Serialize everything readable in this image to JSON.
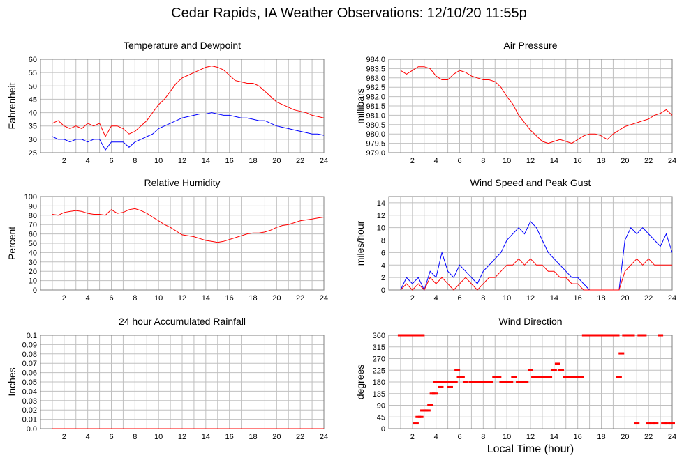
{
  "page": {
    "title": "Cedar Rapids, IA Weather Observations: 12/10/20 11:55p",
    "x_axis_title": "Local Time (hour)"
  },
  "colors": {
    "series_red": "#ff0000",
    "series_blue": "#0000ff",
    "grid": "#c0c0c0",
    "frame": "#808080"
  },
  "chart_data": [
    {
      "id": "temp",
      "type": "line",
      "title": "Temperature and Dewpoint",
      "ylabel": "Fahrenheit",
      "xlim": [
        0,
        24
      ],
      "ylim": [
        25,
        60
      ],
      "xticks": [
        2,
        4,
        6,
        8,
        10,
        12,
        14,
        16,
        18,
        20,
        22,
        24
      ],
      "yticks": [
        25,
        30,
        35,
        40,
        45,
        50,
        55,
        60
      ],
      "ytick_labels": [
        "25",
        "30",
        "35",
        "40",
        "45",
        "50",
        "55",
        "60"
      ],
      "grid": true,
      "series": [
        {
          "color": "#ff0000",
          "x": [
            1,
            1.5,
            2,
            2.5,
            3,
            3.5,
            4,
            4.5,
            5,
            5.5,
            6,
            6.5,
            7,
            7.5,
            8,
            8.5,
            9,
            9.5,
            10,
            10.5,
            11,
            11.5,
            12,
            12.5,
            13,
            13.5,
            14,
            14.5,
            15,
            15.5,
            16,
            16.5,
            17,
            17.5,
            18,
            18.5,
            19,
            19.5,
            20,
            20.5,
            21,
            21.5,
            22,
            22.5,
            23,
            23.5,
            24
          ],
          "y": [
            36,
            37,
            35,
            34,
            35,
            34,
            36,
            35,
            36,
            31,
            35,
            35,
            34,
            32,
            33,
            35,
            37,
            40,
            43,
            45,
            48,
            51,
            53,
            54,
            55,
            56,
            57,
            57.5,
            57,
            56,
            54,
            52,
            51.5,
            51,
            51,
            50,
            48,
            46,
            44,
            43,
            42,
            41,
            40.5,
            40,
            39,
            38.5,
            38
          ]
        },
        {
          "color": "#0000ff",
          "x": [
            1,
            1.5,
            2,
            2.5,
            3,
            3.5,
            4,
            4.5,
            5,
            5.5,
            6,
            6.5,
            7,
            7.5,
            8,
            8.5,
            9,
            9.5,
            10,
            10.5,
            11,
            11.5,
            12,
            12.5,
            13,
            13.5,
            14,
            14.5,
            15,
            15.5,
            16,
            16.5,
            17,
            17.5,
            18,
            18.5,
            19,
            19.5,
            20,
            20.5,
            21,
            21.5,
            22,
            22.5,
            23,
            23.5,
            24
          ],
          "y": [
            31,
            30,
            30,
            29,
            30,
            30,
            29,
            30,
            30,
            26,
            29,
            29,
            29,
            27,
            29,
            30,
            31,
            32,
            34,
            35,
            36,
            37,
            38,
            38.5,
            39,
            39.5,
            39.5,
            40,
            39.5,
            39,
            39,
            38.5,
            38,
            38,
            37.5,
            37,
            37,
            36,
            35,
            34.5,
            34,
            33.5,
            33,
            32.5,
            32,
            32,
            31.5
          ]
        }
      ]
    },
    {
      "id": "pressure",
      "type": "line",
      "title": "Air Pressure",
      "ylabel": "millibars",
      "xlim": [
        0,
        24
      ],
      "ylim": [
        979.0,
        984.0
      ],
      "xticks": [
        2,
        4,
        6,
        8,
        10,
        12,
        14,
        16,
        18,
        20,
        22,
        24
      ],
      "yticks": [
        979.0,
        979.5,
        980.0,
        980.5,
        981.0,
        981.5,
        982.0,
        982.5,
        983.0,
        983.5,
        984.0
      ],
      "ytick_labels": [
        "979.0",
        "979.5",
        "980.0",
        "980.5",
        "981.0",
        "981.5",
        "982.0",
        "982.5",
        "983.0",
        "983.5",
        "984.0"
      ],
      "grid": true,
      "series": [
        {
          "color": "#ff0000",
          "x": [
            1,
            1.5,
            2,
            2.5,
            3,
            3.5,
            4,
            4.5,
            5,
            5.5,
            6,
            6.5,
            7,
            7.5,
            8,
            8.5,
            9,
            9.5,
            10,
            10.5,
            11,
            11.5,
            12,
            12.5,
            13,
            13.5,
            14,
            14.5,
            15,
            15.5,
            16,
            16.5,
            17,
            17.5,
            18,
            18.5,
            19,
            19.5,
            20,
            20.5,
            21,
            21.5,
            22,
            22.5,
            23,
            23.5,
            24
          ],
          "y": [
            983.4,
            983.2,
            983.4,
            983.6,
            983.6,
            983.5,
            983.1,
            982.9,
            982.9,
            983.2,
            983.4,
            983.3,
            983.1,
            983.0,
            982.9,
            982.9,
            982.8,
            982.5,
            982.0,
            981.6,
            981.0,
            980.6,
            980.2,
            979.9,
            979.6,
            979.5,
            979.6,
            979.7,
            979.6,
            979.5,
            979.7,
            979.9,
            980.0,
            980.0,
            979.9,
            979.7,
            980.0,
            980.2,
            980.4,
            980.5,
            980.6,
            980.7,
            980.8,
            981.0,
            981.1,
            981.3,
            981.0
          ]
        }
      ]
    },
    {
      "id": "humidity",
      "type": "line",
      "title": "Relative Humidity",
      "ylabel": "Percent",
      "xlim": [
        0,
        24
      ],
      "ylim": [
        0,
        100
      ],
      "xticks": [
        2,
        4,
        6,
        8,
        10,
        12,
        14,
        16,
        18,
        20,
        22,
        24
      ],
      "yticks": [
        0,
        10,
        20,
        30,
        40,
        50,
        60,
        70,
        80,
        90,
        100
      ],
      "ytick_labels": [
        "0",
        "10",
        "20",
        "30",
        "40",
        "50",
        "60",
        "70",
        "80",
        "90",
        "100"
      ],
      "grid": true,
      "series": [
        {
          "color": "#ff0000",
          "x": [
            1,
            1.5,
            2,
            2.5,
            3,
            3.5,
            4,
            4.5,
            5,
            5.5,
            6,
            6.5,
            7,
            7.5,
            8,
            8.5,
            9,
            9.5,
            10,
            10.5,
            11,
            11.5,
            12,
            12.5,
            13,
            13.5,
            14,
            14.5,
            15,
            15.5,
            16,
            16.5,
            17,
            17.5,
            18,
            18.5,
            19,
            19.5,
            20,
            20.5,
            21,
            21.5,
            22,
            22.5,
            23,
            23.5,
            24
          ],
          "y": [
            81,
            80,
            83,
            84,
            85,
            84,
            82,
            81,
            81,
            80,
            86,
            82,
            83,
            86,
            87,
            85,
            82,
            78,
            74,
            70,
            67,
            63,
            59,
            58,
            57,
            55,
            53,
            52,
            51,
            52,
            54,
            56,
            58,
            60,
            61,
            61,
            62,
            64,
            67,
            69,
            70,
            72,
            74,
            75,
            76,
            77,
            78
          ]
        }
      ]
    },
    {
      "id": "wind",
      "type": "line",
      "title": "Wind Speed and Peak Gust",
      "ylabel": "miles/hour",
      "xlim": [
        0,
        24
      ],
      "ylim": [
        0,
        15
      ],
      "xticks": [
        2,
        4,
        6,
        8,
        10,
        12,
        14,
        16,
        18,
        20,
        22,
        24
      ],
      "yticks": [
        0,
        2,
        4,
        6,
        8,
        10,
        12,
        14
      ],
      "ytick_labels": [
        "0",
        "2",
        "4",
        "6",
        "8",
        "10",
        "12",
        "14"
      ],
      "grid": true,
      "series": [
        {
          "color": "#0000ff",
          "x": [
            1,
            1.5,
            2,
            2.5,
            3,
            3.5,
            4,
            4.5,
            5,
            5.5,
            6,
            6.5,
            7,
            7.5,
            8,
            8.5,
            9,
            9.5,
            10,
            10.5,
            11,
            11.5,
            12,
            12.5,
            13,
            13.5,
            14,
            14.5,
            15,
            15.5,
            16,
            16.5,
            17,
            17.5,
            18,
            18.5,
            19,
            19.5,
            20,
            20.5,
            21,
            21.5,
            22,
            22.5,
            23,
            23.5,
            24
          ],
          "y": [
            0,
            2,
            1,
            2,
            0,
            3,
            2,
            6,
            3,
            2,
            4,
            3,
            2,
            1,
            3,
            4,
            5,
            6,
            8,
            9,
            10,
            9,
            11,
            10,
            8,
            6,
            5,
            4,
            3,
            2,
            2,
            1,
            0,
            0,
            0,
            0,
            0,
            0,
            8,
            10,
            9,
            10,
            9,
            8,
            7,
            9,
            6
          ]
        },
        {
          "color": "#ff0000",
          "x": [
            1,
            1.5,
            2,
            2.5,
            3,
            3.5,
            4,
            4.5,
            5,
            5.5,
            6,
            6.5,
            7,
            7.5,
            8,
            8.5,
            9,
            9.5,
            10,
            10.5,
            11,
            11.5,
            12,
            12.5,
            13,
            13.5,
            14,
            14.5,
            15,
            15.5,
            16,
            16.5,
            17,
            17.5,
            18,
            18.5,
            19,
            19.5,
            20,
            20.5,
            21,
            21.5,
            22,
            22.5,
            23,
            23.5,
            24
          ],
          "y": [
            0,
            1,
            0,
            1,
            0,
            2,
            1,
            2,
            1,
            0,
            1,
            2,
            1,
            0,
            1,
            2,
            2,
            3,
            4,
            4,
            5,
            4,
            5,
            4,
            4,
            3,
            3,
            2,
            2,
            1,
            1,
            0,
            0,
            0,
            0,
            0,
            0,
            0,
            3,
            4,
            5,
            4,
            5,
            4,
            4,
            4,
            4
          ]
        }
      ]
    },
    {
      "id": "rain",
      "type": "line",
      "title": "24 hour Accumulated Rainfall",
      "ylabel": "Inches",
      "xlim": [
        0,
        24
      ],
      "ylim": [
        0.0,
        0.1
      ],
      "xticks": [
        2,
        4,
        6,
        8,
        10,
        12,
        14,
        16,
        18,
        20,
        22,
        24
      ],
      "yticks": [
        0.0,
        0.01,
        0.02,
        0.03,
        0.04,
        0.05,
        0.06,
        0.07,
        0.08,
        0.09,
        0.1
      ],
      "ytick_labels": [
        "0.0",
        "0.01",
        "0.02",
        "0.03",
        "0.04",
        "0.05",
        "0.06",
        "0.07",
        "0.08",
        "0.09",
        "0.1"
      ],
      "grid": true,
      "series": [
        {
          "color": "#ff0000",
          "x": [
            1,
            24
          ],
          "y": [
            0,
            0
          ]
        }
      ]
    },
    {
      "id": "direction",
      "type": "scatter",
      "title": "Wind Direction",
      "ylabel": "degrees",
      "xlim": [
        0,
        24
      ],
      "ylim": [
        0,
        360
      ],
      "xticks": [
        2,
        4,
        6,
        8,
        10,
        12,
        14,
        16,
        18,
        20,
        22,
        24
      ],
      "yticks": [
        0,
        45,
        90,
        135,
        180,
        225,
        270,
        315,
        360
      ],
      "ytick_labels": [
        "0",
        "45",
        "90",
        "135",
        "180",
        "225",
        "270",
        "315",
        "360"
      ],
      "grid": true,
      "series": [
        {
          "color": "#ff0000",
          "x": [
            1.0,
            1.3,
            1.6,
            1.9,
            2.2,
            2.5,
            2.8,
            2.3,
            2.5,
            2.7,
            2.9,
            3.1,
            3.3,
            3.5,
            3.7,
            3.9,
            4.0,
            4.2,
            4.4,
            4.6,
            4.8,
            5.0,
            5.2,
            5.4,
            5.6,
            5.8,
            6.0,
            6.2,
            6.5,
            7.0,
            7.3,
            7.5,
            7.8,
            8.0,
            8.3,
            8.6,
            9.0,
            9.3,
            9.6,
            10.0,
            10.3,
            10.6,
            11.0,
            11.3,
            11.6,
            12.0,
            12.3,
            12.6,
            13.0,
            13.3,
            13.6,
            14.0,
            14.3,
            14.6,
            15.0,
            15.3,
            15.6,
            16.0,
            16.3,
            16.6,
            17.0,
            17.3,
            17.6,
            18.0,
            18.3,
            18.6,
            19.0,
            19.3,
            19.5,
            19.7,
            20.0,
            20.3,
            20.6,
            21.0,
            21.3,
            21.6,
            22.0,
            22.3,
            22.6,
            23.0,
            23.3,
            23.6,
            24.0
          ],
          "y": [
            360,
            360,
            360,
            360,
            360,
            360,
            360,
            20,
            45,
            45,
            70,
            70,
            70,
            90,
            135,
            135,
            180,
            180,
            160,
            180,
            180,
            180,
            160,
            180,
            180,
            225,
            200,
            200,
            180,
            180,
            180,
            180,
            180,
            180,
            180,
            180,
            200,
            200,
            180,
            180,
            180,
            200,
            180,
            180,
            180,
            225,
            200,
            200,
            200,
            200,
            200,
            225,
            250,
            225,
            200,
            200,
            200,
            200,
            200,
            360,
            360,
            360,
            360,
            360,
            360,
            360,
            360,
            360,
            200,
            290,
            360,
            360,
            360,
            20,
            360,
            360,
            20,
            20,
            20,
            360,
            20,
            20,
            20
          ]
        }
      ]
    }
  ]
}
